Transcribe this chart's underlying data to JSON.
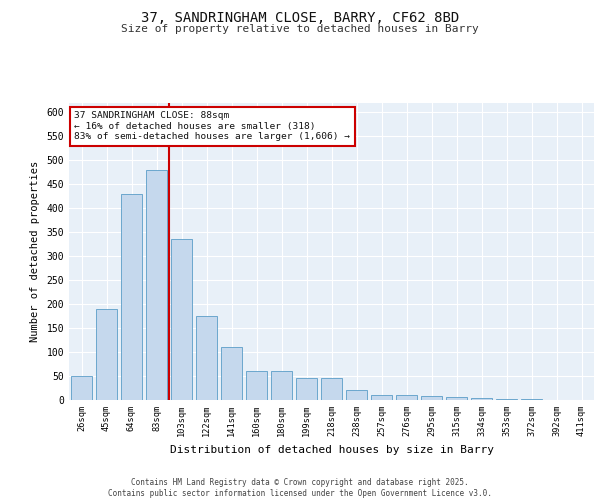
{
  "title1": "37, SANDRINGHAM CLOSE, BARRY, CF62 8BD",
  "title2": "Size of property relative to detached houses in Barry",
  "xlabel": "Distribution of detached houses by size in Barry",
  "ylabel": "Number of detached properties",
  "categories": [
    "26sqm",
    "45sqm",
    "64sqm",
    "83sqm",
    "103sqm",
    "122sqm",
    "141sqm",
    "160sqm",
    "180sqm",
    "199sqm",
    "218sqm",
    "238sqm",
    "257sqm",
    "276sqm",
    "295sqm",
    "315sqm",
    "334sqm",
    "353sqm",
    "372sqm",
    "392sqm",
    "411sqm"
  ],
  "values": [
    50,
    190,
    430,
    480,
    335,
    175,
    110,
    60,
    60,
    45,
    45,
    20,
    10,
    10,
    8,
    7,
    5,
    3,
    2,
    1,
    1
  ],
  "bar_color": "#c5d8ed",
  "bar_edge_color": "#5a9dc8",
  "vline_color": "#cc0000",
  "annotation_text": "37 SANDRINGHAM CLOSE: 88sqm\n← 16% of detached houses are smaller (318)\n83% of semi-detached houses are larger (1,606) →",
  "annotation_box_color": "#cc0000",
  "bg_color": "#e8f0f8",
  "grid_color": "#ffffff",
  "footer": "Contains HM Land Registry data © Crown copyright and database right 2025.\nContains public sector information licensed under the Open Government Licence v3.0.",
  "ylim": [
    0,
    620
  ],
  "yticks": [
    0,
    50,
    100,
    150,
    200,
    250,
    300,
    350,
    400,
    450,
    500,
    550,
    600
  ]
}
